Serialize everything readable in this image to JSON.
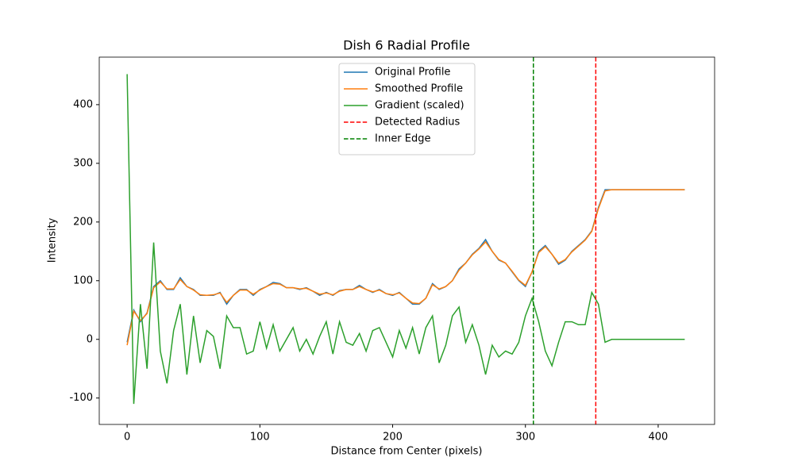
{
  "chart_data": {
    "type": "line",
    "title": "Dish 6 Radial Profile",
    "x_label": "Distance from Center (pixels)",
    "y_label": "Intensity",
    "x": [
      0,
      5,
      10,
      15,
      20,
      25,
      30,
      35,
      40,
      45,
      50,
      55,
      60,
      65,
      70,
      75,
      80,
      85,
      90,
      95,
      100,
      105,
      110,
      115,
      120,
      125,
      130,
      135,
      140,
      145,
      150,
      155,
      160,
      165,
      170,
      175,
      180,
      185,
      190,
      195,
      200,
      205,
      210,
      215,
      220,
      225,
      230,
      235,
      240,
      245,
      250,
      255,
      260,
      265,
      270,
      275,
      280,
      285,
      290,
      295,
      300,
      305,
      310,
      315,
      320,
      325,
      330,
      335,
      340,
      345,
      350,
      355,
      360,
      365,
      370,
      375,
      380,
      385,
      390,
      395,
      400,
      405,
      410,
      415,
      420
    ],
    "series": [
      {
        "name": "Original Profile",
        "color": "#1f77b4",
        "values": [
          -5,
          50,
          30,
          45,
          90,
          100,
          85,
          85,
          105,
          90,
          85,
          75,
          75,
          75,
          80,
          60,
          75,
          85,
          85,
          75,
          85,
          90,
          97,
          95,
          88,
          88,
          85,
          88,
          82,
          75,
          80,
          75,
          83,
          85,
          85,
          92,
          85,
          80,
          85,
          78,
          75,
          80,
          70,
          60,
          60,
          70,
          95,
          85,
          90,
          100,
          120,
          130,
          145,
          155,
          170,
          150,
          135,
          130,
          115,
          100,
          90,
          115,
          150,
          160,
          145,
          128,
          135,
          150,
          160,
          170,
          185,
          225,
          255,
          255,
          255,
          255,
          255,
          255,
          255,
          255,
          255,
          255,
          255,
          255,
          255
        ]
      },
      {
        "name": "Smoothed Profile",
        "color": "#ff7f0e",
        "values": [
          -10,
          48,
          32,
          44,
          88,
          98,
          86,
          86,
          102,
          90,
          84,
          76,
          75,
          76,
          79,
          63,
          75,
          84,
          84,
          77,
          84,
          90,
          95,
          94,
          88,
          88,
          86,
          87,
          82,
          77,
          79,
          76,
          82,
          85,
          85,
          90,
          85,
          81,
          84,
          78,
          76,
          79,
          70,
          62,
          61,
          70,
          93,
          86,
          90,
          100,
          118,
          130,
          144,
          154,
          166,
          150,
          136,
          130,
          116,
          101,
          92,
          115,
          148,
          158,
          145,
          130,
          136,
          149,
          159,
          169,
          184,
          223,
          253,
          255,
          255,
          255,
          255,
          255,
          255,
          255,
          255,
          255,
          255,
          255,
          255
        ]
      },
      {
        "name": "Gradient (scaled)",
        "color": "#2ca02c",
        "values": [
          452,
          -110,
          60,
          -50,
          165,
          -20,
          -75,
          15,
          60,
          -60,
          40,
          -40,
          15,
          5,
          -50,
          40,
          20,
          20,
          -25,
          -20,
          30,
          -15,
          25,
          -20,
          0,
          20,
          -20,
          0,
          -25,
          5,
          30,
          -25,
          30,
          -5,
          -10,
          10,
          -20,
          15,
          20,
          -5,
          -30,
          15,
          -15,
          20,
          -25,
          20,
          40,
          -40,
          -10,
          40,
          55,
          -5,
          25,
          -10,
          -60,
          -10,
          -30,
          -20,
          -25,
          -5,
          40,
          70,
          30,
          -20,
          -45,
          -5,
          30,
          30,
          25,
          25,
          80,
          60,
          -5,
          0,
          0,
          0,
          0,
          0,
          0,
          0,
          0,
          0,
          0,
          0,
          0
        ]
      }
    ],
    "vlines": [
      {
        "name": "Detected Radius",
        "color": "#ff0000",
        "x": 353
      },
      {
        "name": "Inner Edge",
        "color": "#008000",
        "x": 306
      }
    ],
    "xlim": [
      -21,
      442.5
    ],
    "ylim": [
      -145,
      481
    ],
    "xticks": [
      0,
      100,
      200,
      300,
      400
    ],
    "yticks": [
      -100,
      0,
      100,
      200,
      300,
      400
    ],
    "legend": "upper center"
  }
}
